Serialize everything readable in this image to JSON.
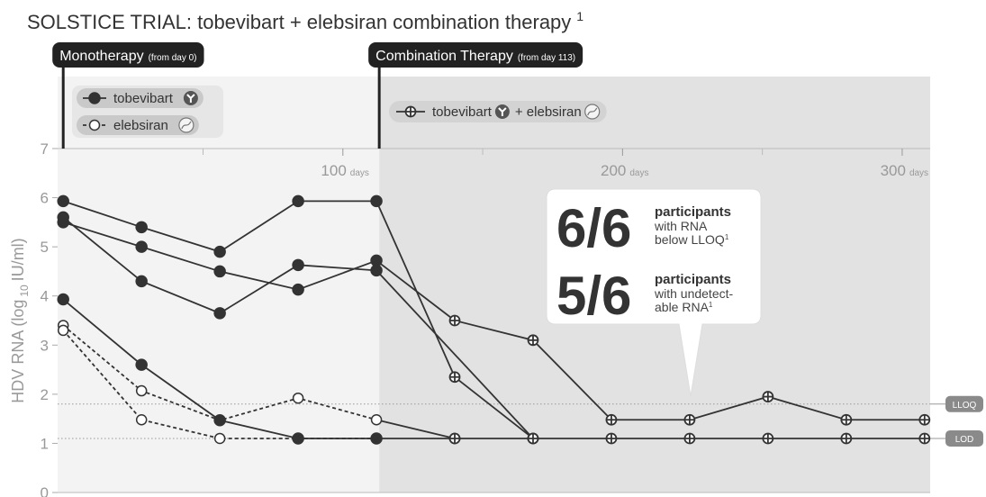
{
  "chart_data": {
    "type": "line",
    "title": "SOLSTICE TRIAL: tobevibart + elebsiran combination therapy",
    "title_sup": "1",
    "y_label": {
      "text": "HDV RNA (log",
      "sub": "10",
      "after": "IU/ml)"
    },
    "xlim": [
      -2,
      310
    ],
    "xticks": [
      100,
      200,
      300
    ],
    "xminor": [
      50,
      150,
      250
    ],
    "x_unit": "days",
    "ylim": [
      0,
      7
    ],
    "yticks": [
      0,
      1,
      2,
      3,
      4,
      5,
      6,
      7
    ],
    "phases": [
      {
        "label": "Monotherapy",
        "note": "(from day 0)",
        "start": 0,
        "color": "#f3f3f3"
      },
      {
        "label": "Combination Therapy",
        "note": "(from day 113)",
        "start": 113,
        "color": "#e2e2e2"
      }
    ],
    "reference_lines": [
      {
        "label": "LLOQ",
        "value": 1.8
      },
      {
        "label": "LOD",
        "value": 1.1
      }
    ],
    "series": [
      {
        "name": "tobevibart",
        "icons": [
          "antibody"
        ],
        "color": "#333333",
        "dash": false,
        "marker": "filled",
        "lines": [
          {
            "x": [
              0,
              28,
              56,
              84,
              112
            ],
            "values": [
              5.93,
              5.4,
              4.9,
              5.93,
              5.93
            ]
          },
          {
            "x": [
              0,
              28,
              56,
              84,
              112
            ],
            "values": [
              5.5,
              5.0,
              4.5,
              4.13,
              4.72
            ]
          },
          {
            "x": [
              0,
              28,
              56,
              84,
              112
            ],
            "values": [
              5.6,
              4.3,
              3.65,
              4.63,
              4.52
            ]
          },
          {
            "x": [
              0,
              28,
              56,
              84,
              112
            ],
            "values": [
              3.93,
              2.6,
              1.47,
              1.1,
              1.1
            ]
          }
        ]
      },
      {
        "name": "elebsiran",
        "icons": [
          "sirna"
        ],
        "color": "#333333",
        "dash": true,
        "marker": "open",
        "lines": [
          {
            "x": [
              0,
              28,
              56,
              84,
              112
            ],
            "values": [
              3.4,
              2.07,
              1.47,
              1.92,
              1.48
            ]
          },
          {
            "x": [
              0,
              28,
              56,
              84,
              112
            ],
            "values": [
              3.3,
              1.48,
              1.1,
              1.1,
              1.1
            ]
          }
        ]
      },
      {
        "name_parts": [
          "tobevibart",
          "+ elebsiran"
        ],
        "icons": [
          "antibody",
          "sirna"
        ],
        "color": "#333333",
        "dash": false,
        "marker": "cross",
        "first_marker": false,
        "lines": [
          {
            "x": [
              112,
              140,
              168
            ],
            "values": [
              5.93,
              2.35,
              1.1
            ]
          },
          {
            "x": [
              112,
              140,
              168,
              196,
              224,
              252,
              280,
              308
            ],
            "values": [
              4.72,
              3.5,
              3.1,
              1.48,
              1.48,
              1.95,
              1.48,
              1.48
            ]
          },
          {
            "x": [
              112,
              168
            ],
            "values": [
              4.52,
              1.1
            ]
          },
          {
            "x": [
              112,
              140
            ],
            "values": [
              1.48,
              1.1
            ]
          },
          {
            "x": [
              112,
              140,
              168,
              196,
              224,
              252,
              280,
              308
            ],
            "values": [
              1.1,
              1.1,
              1.1,
              1.1,
              1.1,
              1.1,
              1.1,
              1.1
            ]
          }
        ]
      }
    ],
    "callout": [
      {
        "value": "6/6",
        "head": "participants",
        "lines": [
          "with RNA",
          "below LLOQ"
        ],
        "sup": "1"
      },
      {
        "value": "5/6",
        "head": "participants",
        "lines": [
          "with undetect-",
          "able RNA"
        ],
        "sup": "1"
      }
    ]
  }
}
